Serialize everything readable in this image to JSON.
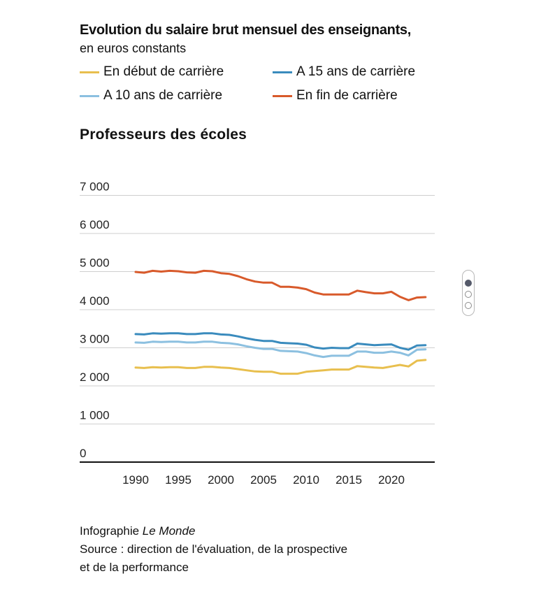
{
  "header": {
    "title": "Evolution du salaire brut mensuel des enseignants,",
    "subtitle": "en euros constants"
  },
  "legend": [
    {
      "label": "En début de carrière",
      "color": "#e8bf4e"
    },
    {
      "label": "A 15 ans de carrière",
      "color": "#3a8bbd"
    },
    {
      "label": "A 10 ans de carrière",
      "color": "#8cc0e0"
    },
    {
      "label": "En fin de carrière",
      "color": "#d85a2b"
    }
  ],
  "panel_title": "Professeurs des écoles",
  "footer": {
    "credit_prefix": "Infographie ",
    "credit_source": "Le Monde",
    "source_line1": "Source : direction de l'évaluation, de la prospective",
    "source_line2": "et de la performance"
  },
  "chart_data": {
    "type": "line",
    "title": "Professeurs des écoles",
    "xlabel": "",
    "ylabel": "",
    "xlim": [
      1990,
      2024
    ],
    "ylim": [
      0,
      7000
    ],
    "yticks": [
      0,
      1000,
      2000,
      3000,
      4000,
      5000,
      6000,
      7000
    ],
    "ytick_labels": [
      "0",
      "1 000",
      "2 000",
      "3 000",
      "4 000",
      "5 000",
      "6 000",
      "7 000"
    ],
    "xticks": [
      1990,
      1995,
      2000,
      2005,
      2010,
      2015,
      2020
    ],
    "xtick_labels": [
      "1990",
      "1995",
      "2000",
      "2005",
      "2010",
      "2015",
      "2020"
    ],
    "grid": true,
    "x": [
      1990,
      1991,
      1992,
      1993,
      1994,
      1995,
      1996,
      1997,
      1998,
      1999,
      2000,
      2001,
      2002,
      2003,
      2004,
      2005,
      2006,
      2007,
      2008,
      2009,
      2010,
      2011,
      2012,
      2013,
      2014,
      2015,
      2016,
      2017,
      2018,
      2019,
      2020,
      2021,
      2022,
      2023,
      2024
    ],
    "series": [
      {
        "name": "En début de carrière",
        "color": "#e8bf4e",
        "values": [
          2480,
          2470,
          2490,
          2480,
          2490,
          2490,
          2470,
          2470,
          2500,
          2500,
          2480,
          2470,
          2440,
          2410,
          2380,
          2370,
          2370,
          2320,
          2320,
          2320,
          2370,
          2390,
          2410,
          2430,
          2430,
          2430,
          2520,
          2500,
          2480,
          2470,
          2510,
          2550,
          2510,
          2660,
          2680
        ]
      },
      {
        "name": "A 10 ans de carrière",
        "color": "#8cc0e0",
        "values": [
          3140,
          3130,
          3160,
          3150,
          3160,
          3160,
          3140,
          3140,
          3160,
          3160,
          3130,
          3120,
          3090,
          3040,
          3000,
          2970,
          2970,
          2920,
          2910,
          2900,
          2860,
          2800,
          2760,
          2790,
          2790,
          2790,
          2900,
          2900,
          2870,
          2870,
          2900,
          2870,
          2800,
          2950,
          2960
        ]
      },
      {
        "name": "A 15 ans de carrière",
        "color": "#3a8bbd",
        "values": [
          3360,
          3350,
          3380,
          3370,
          3380,
          3380,
          3360,
          3360,
          3380,
          3380,
          3350,
          3340,
          3300,
          3250,
          3210,
          3180,
          3180,
          3130,
          3120,
          3110,
          3080,
          3010,
          2980,
          3000,
          2990,
          2990,
          3110,
          3090,
          3070,
          3080,
          3090,
          3000,
          2950,
          3060,
          3070
        ]
      },
      {
        "name": "En fin de carrière",
        "color": "#d85a2b",
        "values": [
          4990,
          4970,
          5020,
          5000,
          5020,
          5010,
          4980,
          4970,
          5020,
          5010,
          4960,
          4940,
          4880,
          4800,
          4740,
          4710,
          4710,
          4600,
          4600,
          4580,
          4540,
          4450,
          4400,
          4400,
          4400,
          4400,
          4500,
          4460,
          4430,
          4430,
          4470,
          4340,
          4250,
          4320,
          4330
        ]
      }
    ]
  },
  "scroll_widget": {
    "active_index": 0,
    "count": 3
  }
}
